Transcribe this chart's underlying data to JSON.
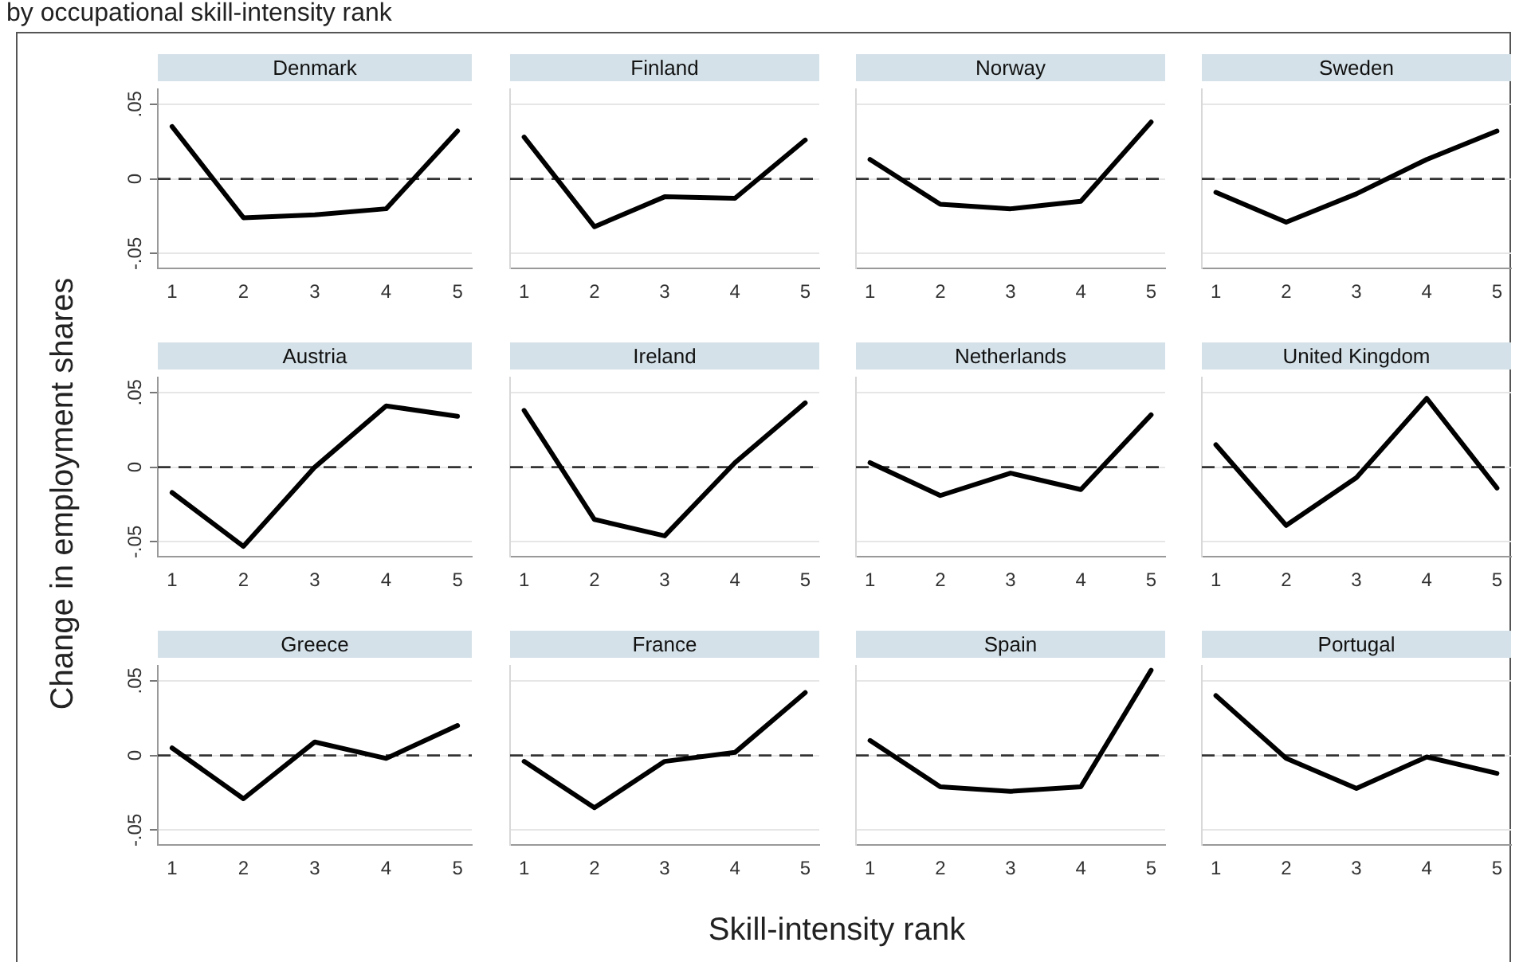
{
  "chart_data": [
    {
      "type": "line",
      "title": "Denmark",
      "annotations": [
        "by occupational skill-intensity rank"
      ],
      "x": [
        1,
        2,
        3,
        4,
        5
      ],
      "values": [
        0.035,
        -0.026,
        -0.024,
        -0.02,
        0.032
      ],
      "color": "#000000",
      "xlim": [
        0.8,
        5.2
      ],
      "xticks": [
        1,
        2,
        3,
        4,
        5
      ],
      "ylim": [
        -0.06,
        0.06
      ],
      "yticks": [
        {
          "value": -0.05,
          "label": "-.05"
        },
        {
          "value": 0,
          "label": "0"
        },
        {
          "value": 0.05,
          "label": ".05"
        }
      ],
      "grid": "y",
      "ref_lines": [
        {
          "axis": "y",
          "value": 0,
          "line_style": "dashed"
        }
      ]
    },
    {
      "type": "line",
      "title": "Finland",
      "x": [
        1,
        2,
        3,
        4,
        5
      ],
      "values": [
        0.028,
        -0.032,
        -0.012,
        -0.013,
        0.026
      ],
      "color": "#000000",
      "xlim": [
        0.8,
        5.2
      ],
      "xticks": [
        1,
        2,
        3,
        4,
        5
      ],
      "ylim": [
        -0.06,
        0.06
      ],
      "yticks": [
        {
          "value": -0.05,
          "label": null
        },
        {
          "value": 0,
          "label": null
        },
        {
          "value": 0.05,
          "label": null
        }
      ],
      "grid": "y",
      "tick_labels": "x",
      "ref_lines": [
        {
          "axis": "y",
          "value": 0,
          "line_style": "dashed"
        }
      ]
    },
    {
      "type": "line",
      "title": "Norway",
      "x": [
        1,
        2,
        3,
        4,
        5
      ],
      "values": [
        0.013,
        -0.017,
        -0.02,
        -0.015,
        0.038
      ],
      "color": "#000000",
      "xlim": [
        0.8,
        5.2
      ],
      "xticks": [
        1,
        2,
        3,
        4,
        5
      ],
      "ylim": [
        -0.06,
        0.06
      ],
      "yticks": [
        {
          "value": -0.05,
          "label": null
        },
        {
          "value": 0,
          "label": null
        },
        {
          "value": 0.05,
          "label": null
        }
      ],
      "grid": "y",
      "tick_labels": "x",
      "ref_lines": [
        {
          "axis": "y",
          "value": 0,
          "line_style": "dashed"
        }
      ]
    },
    {
      "type": "line",
      "title": "Sweden",
      "x": [
        1,
        2,
        3,
        4,
        5
      ],
      "values": [
        -0.009,
        -0.029,
        -0.01,
        0.013,
        0.032
      ],
      "color": "#000000",
      "xlim": [
        0.8,
        5.2
      ],
      "xticks": [
        1,
        2,
        3,
        4,
        5
      ],
      "ylim": [
        -0.06,
        0.06
      ],
      "yticks": [
        {
          "value": -0.05,
          "label": null
        },
        {
          "value": 0,
          "label": null
        },
        {
          "value": 0.05,
          "label": null
        }
      ],
      "grid": "y",
      "tick_labels": "x",
      "ref_lines": [
        {
          "axis": "y",
          "value": 0,
          "line_style": "dashed"
        }
      ]
    },
    {
      "type": "line",
      "title": "Austria",
      "ylabel": "Change in employment shares",
      "x": [
        1,
        2,
        3,
        4,
        5
      ],
      "values": [
        -0.017,
        -0.053,
        0,
        0.041,
        0.034
      ],
      "color": "#000000",
      "xlim": [
        0.8,
        5.2
      ],
      "xticks": [
        1,
        2,
        3,
        4,
        5
      ],
      "ylim": [
        -0.06,
        0.06
      ],
      "yticks": [
        {
          "value": -0.05,
          "label": "-.05"
        },
        {
          "value": 0,
          "label": "0"
        },
        {
          "value": 0.05,
          "label": ".05"
        }
      ],
      "grid": "y",
      "ref_lines": [
        {
          "axis": "y",
          "value": 0,
          "line_style": "dashed"
        }
      ]
    },
    {
      "type": "line",
      "title": "Ireland",
      "x": [
        1,
        2,
        3,
        4,
        5
      ],
      "values": [
        0.038,
        -0.035,
        -0.046,
        0.003,
        0.043
      ],
      "color": "#000000",
      "xlim": [
        0.8,
        5.2
      ],
      "xticks": [
        1,
        2,
        3,
        4,
        5
      ],
      "ylim": [
        -0.06,
        0.06
      ],
      "yticks": [
        {
          "value": -0.05,
          "label": null
        },
        {
          "value": 0,
          "label": null
        },
        {
          "value": 0.05,
          "label": null
        }
      ],
      "grid": "y",
      "tick_labels": "x",
      "ref_lines": [
        {
          "axis": "y",
          "value": 0,
          "line_style": "dashed"
        }
      ]
    },
    {
      "type": "line",
      "title": "Netherlands",
      "x": [
        1,
        2,
        3,
        4,
        5
      ],
      "values": [
        0.003,
        -0.019,
        -0.004,
        -0.015,
        0.035
      ],
      "color": "#000000",
      "xlim": [
        0.8,
        5.2
      ],
      "xticks": [
        1,
        2,
        3,
        4,
        5
      ],
      "ylim": [
        -0.06,
        0.06
      ],
      "yticks": [
        {
          "value": -0.05,
          "label": null
        },
        {
          "value": 0,
          "label": null
        },
        {
          "value": 0.05,
          "label": null
        }
      ],
      "grid": "y",
      "tick_labels": "x",
      "ref_lines": [
        {
          "axis": "y",
          "value": 0,
          "line_style": "dashed"
        }
      ]
    },
    {
      "type": "line",
      "title": "United Kingdom",
      "x": [
        1,
        2,
        3,
        4,
        5
      ],
      "values": [
        0.015,
        -0.039,
        -0.007,
        0.046,
        -0.014
      ],
      "color": "#000000",
      "xlim": [
        0.8,
        5.2
      ],
      "xticks": [
        1,
        2,
        3,
        4,
        5
      ],
      "ylim": [
        -0.06,
        0.06
      ],
      "yticks": [
        {
          "value": -0.05,
          "label": null
        },
        {
          "value": 0,
          "label": null
        },
        {
          "value": 0.05,
          "label": null
        }
      ],
      "grid": "y",
      "tick_labels": "x",
      "ref_lines": [
        {
          "axis": "y",
          "value": 0,
          "line_style": "dashed"
        }
      ]
    },
    {
      "type": "line",
      "title": "Greece",
      "x": [
        1,
        2,
        3,
        4,
        5
      ],
      "values": [
        0.005,
        -0.029,
        0.009,
        -0.002,
        0.02
      ],
      "color": "#000000",
      "xlim": [
        0.8,
        5.2
      ],
      "xticks": [
        1,
        2,
        3,
        4,
        5
      ],
      "ylim": [
        -0.06,
        0.06
      ],
      "yticks": [
        {
          "value": -0.05,
          "label": "-.05"
        },
        {
          "value": 0,
          "label": "0"
        },
        {
          "value": 0.05,
          "label": ".05"
        }
      ],
      "grid": "y",
      "ref_lines": [
        {
          "axis": "y",
          "value": 0,
          "line_style": "dashed"
        }
      ]
    },
    {
      "type": "line",
      "title": "France",
      "xlabel": "Skill-intensity rank",
      "x": [
        1,
        2,
        3,
        4,
        5
      ],
      "values": [
        -0.004,
        -0.035,
        -0.004,
        0.002,
        0.042
      ],
      "color": "#000000",
      "xlim": [
        0.8,
        5.2
      ],
      "xticks": [
        1,
        2,
        3,
        4,
        5
      ],
      "ylim": [
        -0.06,
        0.06
      ],
      "yticks": [
        {
          "value": -0.05,
          "label": null
        },
        {
          "value": 0,
          "label": null
        },
        {
          "value": 0.05,
          "label": null
        }
      ],
      "grid": "y",
      "tick_labels": "x",
      "ref_lines": [
        {
          "axis": "y",
          "value": 0,
          "line_style": "dashed"
        }
      ]
    },
    {
      "type": "line",
      "title": "Spain",
      "x": [
        1,
        2,
        3,
        4,
        5
      ],
      "values": [
        0.01,
        -0.021,
        -0.024,
        -0.021,
        0.057
      ],
      "color": "#000000",
      "xlim": [
        0.8,
        5.2
      ],
      "xticks": [
        1,
        2,
        3,
        4,
        5
      ],
      "ylim": [
        -0.06,
        0.06
      ],
      "yticks": [
        {
          "value": -0.05,
          "label": null
        },
        {
          "value": 0,
          "label": null
        },
        {
          "value": 0.05,
          "label": null
        }
      ],
      "grid": "y",
      "tick_labels": "x",
      "ref_lines": [
        {
          "axis": "y",
          "value": 0,
          "line_style": "dashed"
        }
      ]
    },
    {
      "type": "line",
      "title": "Portugal",
      "x": [
        1,
        2,
        3,
        4,
        5
      ],
      "values": [
        0.04,
        -0.002,
        -0.022,
        -0.001,
        -0.012
      ],
      "color": "#000000",
      "xlim": [
        0.8,
        5.2
      ],
      "xticks": [
        1,
        2,
        3,
        4,
        5
      ],
      "ylim": [
        -0.06,
        0.06
      ],
      "yticks": [
        {
          "value": -0.05,
          "label": null
        },
        {
          "value": 0,
          "label": null
        },
        {
          "value": 0.05,
          "label": null
        }
      ],
      "grid": "y",
      "tick_labels": "x",
      "ref_lines": [
        {
          "axis": "y",
          "value": 0,
          "line_style": "dashed"
        }
      ]
    }
  ]
}
